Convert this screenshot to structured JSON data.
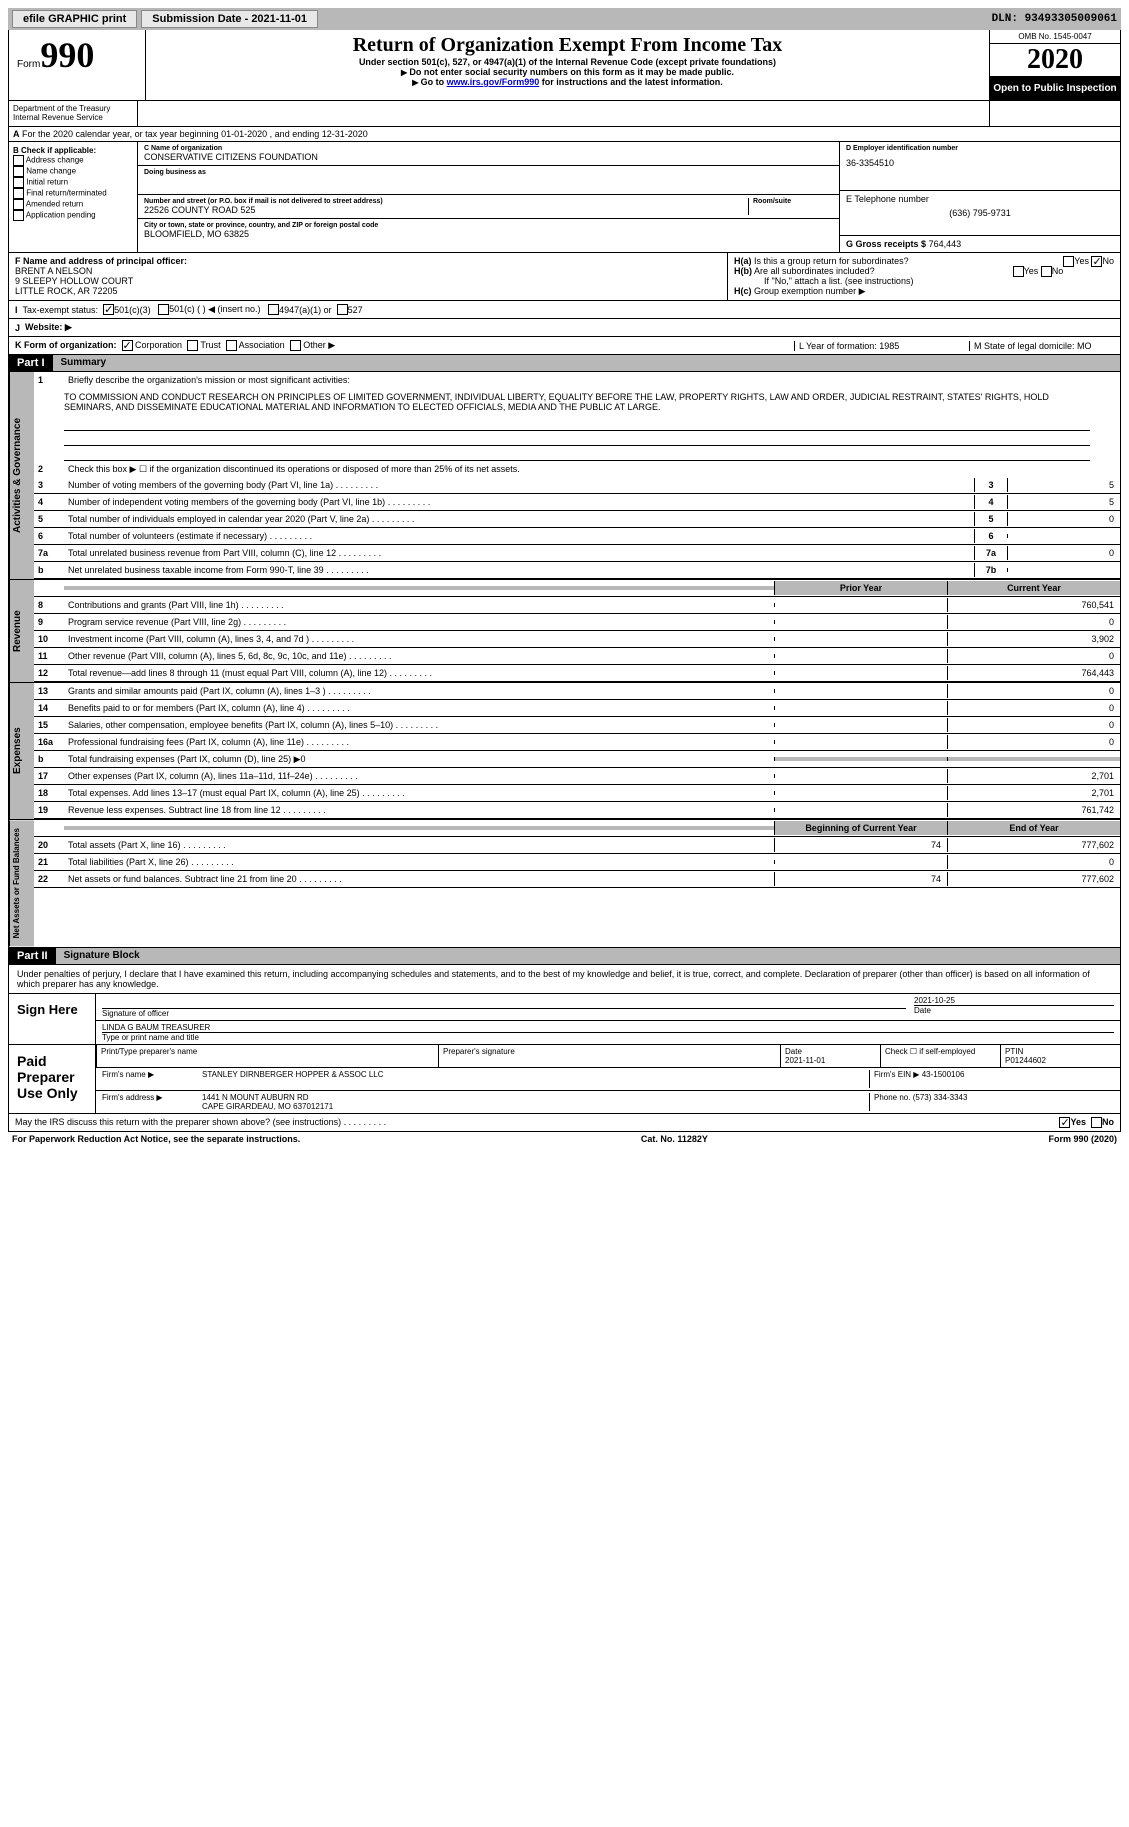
{
  "topbar": {
    "efile": "efile GRAPHIC print",
    "sub_label": "Submission Date - 2021-11-01",
    "dln": "DLN: 93493305009061"
  },
  "header": {
    "form_word": "Form",
    "form_num": "990",
    "dept1": "Department of the Treasury",
    "dept2": "Internal Revenue Service",
    "title": "Return of Organization Exempt From Income Tax",
    "sub1": "Under section 501(c), 527, or 4947(a)(1) of the Internal Revenue Code (except private foundations)",
    "sub2": "Do not enter social security numbers on this form as it may be made public.",
    "sub3_pre": "Go to ",
    "sub3_link": "www.irs.gov/Form990",
    "sub3_post": " for instructions and the latest information.",
    "omb": "OMB No. 1545-0047",
    "year": "2020",
    "open": "Open to Public Inspection"
  },
  "row_a": "For the 2020 calendar year, or tax year beginning 01-01-2020   , and ending 12-31-2020",
  "b": {
    "header": "B Check if applicable:",
    "items": [
      "Address change",
      "Name change",
      "Initial return",
      "Final return/terminated",
      "Amended return",
      "Application pending"
    ]
  },
  "c": {
    "name_label": "C Name of organization",
    "name": "CONSERVATIVE CITIZENS FOUNDATION",
    "dba_label": "Doing business as",
    "addr_label": "Number and street (or P.O. box if mail is not delivered to street address)",
    "room_label": "Room/suite",
    "addr": "22526 COUNTY ROAD 525",
    "city_label": "City or town, state or province, country, and ZIP or foreign postal code",
    "city": "BLOOMFIELD, MO  63825"
  },
  "d": {
    "label": "D Employer identification number",
    "val": "36-3354510"
  },
  "e": {
    "label": "E Telephone number",
    "val": "(636) 795-9731"
  },
  "g": {
    "label": "G Gross receipts $",
    "val": "764,443"
  },
  "f": {
    "label": "F  Name and address of principal officer:",
    "name": "BRENT A NELSON",
    "addr1": "9 SLEEPY HOLLOW COURT",
    "addr2": "LITTLE ROCK, AR  72205"
  },
  "h": {
    "a": "Is this a group return for subordinates?",
    "b": "Are all subordinates included?",
    "b_note": "If \"No,\" attach a list. (see instructions)",
    "c": "Group exemption number ▶",
    "yes": "Yes",
    "no": "No"
  },
  "i": {
    "label": "Tax-exempt status:",
    "opts": [
      "501(c)(3)",
      "501(c) (  ) ◀ (insert no.)",
      "4947(a)(1) or",
      "527"
    ]
  },
  "j": "Website: ▶",
  "k": {
    "label": "K Form of organization:",
    "opts": [
      "Corporation",
      "Trust",
      "Association",
      "Other ▶"
    ],
    "l": "L Year of formation: 1985",
    "m": "M State of legal domicile: MO"
  },
  "part1": {
    "label": "Part I",
    "title": "Summary",
    "mission_label": "Briefly describe the organization's mission or most significant activities:",
    "mission": "TO COMMISSION AND CONDUCT RESEARCH ON PRINCIPLES OF LIMITED GOVERNMENT, INDIVIDUAL LIBERTY, EQUALITY BEFORE THE LAW, PROPERTY RIGHTS, LAW AND ORDER, JUDICIAL RESTRAINT, STATES' RIGHTS, HOLD SEMINARS, AND DISSEMINATE EDUCATIONAL MATERIAL AND INFORMATION TO ELECTED OFFICIALS, MEDIA AND THE PUBLIC AT LARGE.",
    "line2": "Check this box ▶ ☐  if the organization discontinued its operations or disposed of more than 25% of its net assets.",
    "lines_gov": [
      {
        "n": "3",
        "t": "Number of voting members of the governing body (Part VI, line 1a)",
        "b": "3",
        "v": "5"
      },
      {
        "n": "4",
        "t": "Number of independent voting members of the governing body (Part VI, line 1b)",
        "b": "4",
        "v": "5"
      },
      {
        "n": "5",
        "t": "Total number of individuals employed in calendar year 2020 (Part V, line 2a)",
        "b": "5",
        "v": "0"
      },
      {
        "n": "6",
        "t": "Total number of volunteers (estimate if necessary)",
        "b": "6",
        "v": ""
      },
      {
        "n": "7a",
        "t": "Total unrelated business revenue from Part VIII, column (C), line 12",
        "b": "7a",
        "v": "0"
      },
      {
        "n": "b",
        "t": "Net unrelated business taxable income from Form 990-T, line 39",
        "b": "7b",
        "v": ""
      }
    ],
    "col_prior": "Prior Year",
    "col_current": "Current Year",
    "lines_rev": [
      {
        "n": "8",
        "t": "Contributions and grants (Part VIII, line 1h)",
        "p": "",
        "c": "760,541"
      },
      {
        "n": "9",
        "t": "Program service revenue (Part VIII, line 2g)",
        "p": "",
        "c": "0"
      },
      {
        "n": "10",
        "t": "Investment income (Part VIII, column (A), lines 3, 4, and 7d )",
        "p": "",
        "c": "3,902"
      },
      {
        "n": "11",
        "t": "Other revenue (Part VIII, column (A), lines 5, 6d, 8c, 9c, 10c, and 11e)",
        "p": "",
        "c": "0"
      },
      {
        "n": "12",
        "t": "Total revenue—add lines 8 through 11 (must equal Part VIII, column (A), line 12)",
        "p": "",
        "c": "764,443"
      }
    ],
    "lines_exp": [
      {
        "n": "13",
        "t": "Grants and similar amounts paid (Part IX, column (A), lines 1–3 )",
        "p": "",
        "c": "0"
      },
      {
        "n": "14",
        "t": "Benefits paid to or for members (Part IX, column (A), line 4)",
        "p": "",
        "c": "0"
      },
      {
        "n": "15",
        "t": "Salaries, other compensation, employee benefits (Part IX, column (A), lines 5–10)",
        "p": "",
        "c": "0"
      },
      {
        "n": "16a",
        "t": "Professional fundraising fees (Part IX, column (A), line 11e)",
        "p": "",
        "c": "0"
      },
      {
        "n": "b",
        "t": "Total fundraising expenses (Part IX, column (D), line 25) ▶0",
        "grey": true
      },
      {
        "n": "17",
        "t": "Other expenses (Part IX, column (A), lines 11a–11d, 11f–24e)",
        "p": "",
        "c": "2,701"
      },
      {
        "n": "18",
        "t": "Total expenses. Add lines 13–17 (must equal Part IX, column (A), line 25)",
        "p": "",
        "c": "2,701"
      },
      {
        "n": "19",
        "t": "Revenue less expenses. Subtract line 18 from line 12",
        "p": "",
        "c": "761,742"
      }
    ],
    "col_begin": "Beginning of Current Year",
    "col_end": "End of Year",
    "lines_net": [
      {
        "n": "20",
        "t": "Total assets (Part X, line 16)",
        "p": "74",
        "c": "777,602"
      },
      {
        "n": "21",
        "t": "Total liabilities (Part X, line 26)",
        "p": "",
        "c": "0"
      },
      {
        "n": "22",
        "t": "Net assets or fund balances. Subtract line 21 from line 20",
        "p": "74",
        "c": "777,602"
      }
    ],
    "side_gov": "Activities & Governance",
    "side_rev": "Revenue",
    "side_exp": "Expenses",
    "side_net": "Net Assets or Fund Balances"
  },
  "part2": {
    "label": "Part II",
    "title": "Signature Block",
    "perjury": "Under penalties of perjury, I declare that I have examined this return, including accompanying schedules and statements, and to the best of my knowledge and belief, it is true, correct, and complete. Declaration of preparer (other than officer) is based on all information of which preparer has any knowledge.",
    "sign_here": "Sign Here",
    "sig_officer": "Signature of officer",
    "sig_date": "Date",
    "sig_date_val": "2021-10-25",
    "type_name": "LINDA G BAUM TREASURER",
    "type_label": "Type or print name and title",
    "paid": "Paid Preparer Use Only",
    "prep_name_label": "Print/Type preparer's name",
    "prep_sig_label": "Preparer's signature",
    "prep_date_label": "Date",
    "prep_date": "2021-11-01",
    "prep_check": "Check ☐ if self-employed",
    "ptin_label": "PTIN",
    "ptin": "P01244602",
    "firm_name_label": "Firm's name    ▶",
    "firm_name": "STANLEY DIRNBERGER HOPPER & ASSOC LLC",
    "firm_ein_label": "Firm's EIN ▶",
    "firm_ein": "43-1500106",
    "firm_addr_label": "Firm's address ▶",
    "firm_addr1": "1441 N MOUNT AUBURN RD",
    "firm_addr2": "CAPE GIRARDEAU, MO  637012171",
    "phone_label": "Phone no.",
    "phone": "(573) 334-3343",
    "discuss": "May the IRS discuss this return with the preparer shown above? (see instructions)"
  },
  "footer": {
    "left": "For Paperwork Reduction Act Notice, see the separate instructions.",
    "mid": "Cat. No. 11282Y",
    "right": "Form 990 (2020)"
  }
}
